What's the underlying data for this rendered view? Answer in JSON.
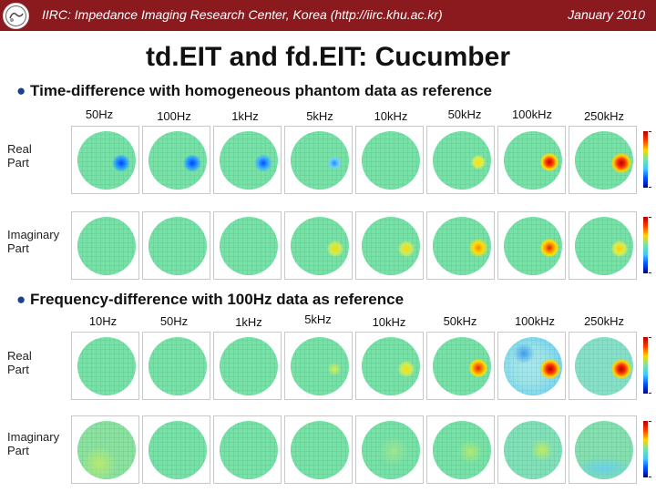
{
  "header": {
    "left": "IIRC: Impedance Imaging Research Center, Korea (http://iirc.khu.ac.kr)",
    "right": "January 2010"
  },
  "title": "td.EIT and fd.EIT: Cucumber",
  "colors": {
    "header": "#8b1a1f",
    "bullet": "#1c3f8e",
    "phantom_bg": "#77e2a7"
  },
  "section1": {
    "heading": "Time-difference with homogeneous phantom data as reference",
    "frequencies": [
      "50Hz",
      "100Hz",
      "1kHz",
      "5kHz",
      "10kHz",
      "50kHz",
      "100kHz",
      "250kHz"
    ],
    "rows": [
      {
        "label_line1": "Real",
        "label_line2": "Part"
      },
      {
        "label_line1": "Imaginary",
        "label_line2": "Part"
      }
    ]
  },
  "section2": {
    "heading": "Frequency-difference with 100Hz data as reference",
    "frequencies": [
      "10Hz",
      "50Hz",
      "1kHz",
      "5kHz",
      "10kHz",
      "50kHz",
      "100kHz",
      "250kHz"
    ],
    "rows": [
      {
        "label_line1": "Real",
        "label_line2": "Part"
      },
      {
        "label_line1": "Imaginary",
        "label_line2": "Part"
      }
    ]
  }
}
